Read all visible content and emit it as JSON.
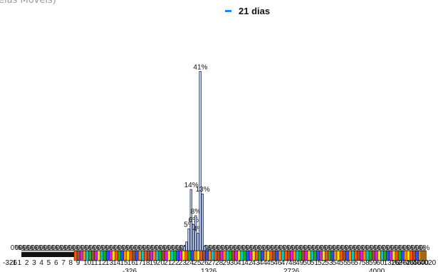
{
  "title_fragment": "elas Móveis)",
  "legend": {
    "label": "21 dias"
  },
  "colors": {
    "bar_fill": "#c8d8f2",
    "bar_stroke": "#1a2a55",
    "legend_swatch": "#1e88e5",
    "strip_palette": [
      "#ff5500",
      "#2b50ff",
      "#ffe000",
      "#17b517",
      "#e11de1",
      "#00c8c8",
      "#a0522d",
      "#ff8c00"
    ]
  },
  "chart_data": {
    "type": "bar",
    "title": "",
    "xlabel": "",
    "ylabel": "",
    "ylim": [
      0,
      0.44
    ],
    "series": [
      {
        "name": "21 dias"
      }
    ],
    "x_tick_labels": [
      "-326",
      "-1",
      "1",
      "2",
      "3",
      "4",
      "5",
      "6",
      "7",
      "8",
      "9",
      "10",
      "11",
      "12",
      "13",
      "14",
      "15",
      "16",
      "17",
      "18",
      "19",
      "20",
      "21",
      "22",
      "23",
      "24",
      "25",
      "26",
      "27",
      "28",
      "29",
      "30",
      "41",
      "42",
      "43",
      "44",
      "45",
      "46",
      "47",
      "48",
      "49",
      "50",
      "51",
      "52",
      "53",
      "54",
      "55",
      "56",
      "57",
      "58",
      "59",
      "60",
      "1326",
      "1696",
      "2726",
      "4056",
      "4000",
      "4020"
    ],
    "x_secondary_labels": [
      "-326",
      "1326",
      "2726",
      "4000"
    ],
    "bars": [
      {
        "label": "0%",
        "value": 0.002
      },
      {
        "label": "0%",
        "value": 0.003
      },
      {
        "label": "1%",
        "value": 0.01
      },
      {
        "label": "2%",
        "value": 0.02
      },
      {
        "label": "5%",
        "value": 0.05
      },
      {
        "label": "14%",
        "value": 0.14
      },
      {
        "label": "6%",
        "value": 0.06
      },
      {
        "label": "8%",
        "value": 0.08
      },
      {
        "label": "4%",
        "value": 0.04
      },
      {
        "label": "41%",
        "value": 0.41
      },
      {
        "label": "13%",
        "value": 0.13
      },
      {
        "label": "1%",
        "value": 0.01
      },
      {
        "label": "0%",
        "value": 0.003
      },
      {
        "label": "0%",
        "value": 0.002
      }
    ],
    "zero_labels": [
      "0%",
      "0%",
      "0%",
      "0%",
      "0%",
      "0%",
      "0%",
      "0%",
      "0%",
      "0%",
      "0%",
      "0%",
      "0%",
      "0%",
      "0%",
      "0%",
      "0%",
      "0%",
      "0%",
      "0%",
      "0%",
      "0%",
      "0%",
      "0%",
      "0%",
      "0%",
      "0%",
      "0%",
      "0%",
      "0%",
      "0%",
      "0%",
      "0%",
      "0%",
      "0%",
      "0%",
      "0%",
      "0%",
      "0%",
      "0%",
      "0%",
      "0%",
      "0%",
      "0%",
      "0%",
      "0%",
      "0%",
      "0%",
      "0%",
      "0%",
      "0%",
      "0%",
      "0%",
      "0%",
      "0%",
      "0%",
      "0%",
      "0%",
      "0%",
      "0%",
      "0%",
      "0%",
      "0%",
      "0%",
      "0%",
      "0%",
      "0%",
      "0%",
      "0%",
      "0%",
      "0%",
      "0%",
      "0%",
      "0%",
      "0%",
      "0%",
      "0%",
      "0%",
      "0%",
      "0%",
      "0%",
      "0%",
      "0%",
      "0%",
      "0%",
      "0%",
      "0%",
      "0%",
      "0%",
      "0%",
      "0%",
      "0%",
      "0%",
      "0%",
      "0%",
      "0%",
      "0%",
      "0%",
      "0%",
      "0%"
    ]
  }
}
